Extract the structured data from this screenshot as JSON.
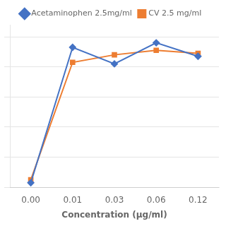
{
  "chart_data": {
    "type": "line",
    "x_label": "Concentration (μg/ml)",
    "categories": [
      "0.00",
      "0.01",
      "0.03",
      "0.06",
      "0.12"
    ],
    "series": [
      {
        "name": "Acetaminophen 2.5mg/ml",
        "color": "#4472C4",
        "marker": "diamond",
        "line_style": "solid",
        "values": [
          0.03,
          0.93,
          0.82,
          0.96,
          0.87
        ]
      },
      {
        "name": "CV 2.5 mg/ml",
        "color": "#ED7D31",
        "marker": "square",
        "line_style": "solid",
        "values": [
          0.05,
          0.83,
          0.88,
          0.91,
          0.89
        ]
      }
    ],
    "ylim": [
      0,
      1.08
    ],
    "yticks": [
      0.0,
      0.2,
      0.4,
      0.6,
      0.8,
      1.0
    ],
    "tick_labels": "x",
    "grid": "y",
    "legend": "top"
  }
}
